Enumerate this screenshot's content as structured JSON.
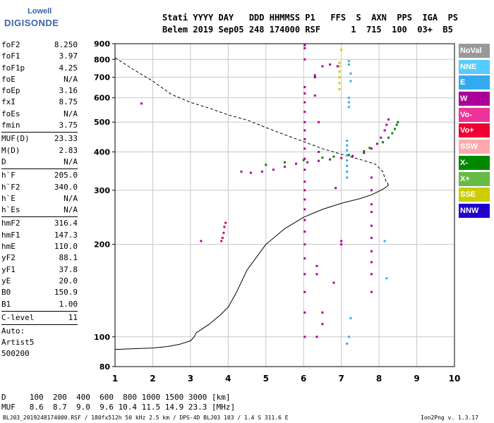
{
  "logo": {
    "top": "Lowell",
    "main": "DIGISONDE"
  },
  "header": {
    "line1": "Stati YYYY DAY   DDD HHMMSS P1   FFS  S  AXN  PPS  IGA  PS",
    "line2": "Belem 2019 Sep05 248 174000 RSF      1  715  100  03+  B5"
  },
  "params": [
    {
      "k": "foF2",
      "v": "8.250"
    },
    {
      "k": "foF1",
      "v": "3.97"
    },
    {
      "k": "foF1p",
      "v": "4.25"
    },
    {
      "k": "foE",
      "v": "N/A"
    },
    {
      "k": "foEp",
      "v": "3.16"
    },
    {
      "k": "fxI",
      "v": "8.75"
    },
    {
      "k": "foEs",
      "v": "N/A"
    },
    {
      "k": "fmin",
      "v": "3.75"
    },
    {
      "sep": true
    },
    {
      "k": "MUF(D)",
      "v": "23.33"
    },
    {
      "k": "M(D)",
      "v": "2.83"
    },
    {
      "k": "D",
      "v": "N/A"
    },
    {
      "sep": true
    },
    {
      "k": "h`F",
      "v": "205.0"
    },
    {
      "k": "h`F2",
      "v": "340.0"
    },
    {
      "k": "h`E",
      "v": "N/A"
    },
    {
      "k": "h`Es",
      "v": "N/A"
    },
    {
      "sep": true
    },
    {
      "k": "hmF2",
      "v": "316.4"
    },
    {
      "k": "hmF1",
      "v": "147.3"
    },
    {
      "k": "hmE",
      "v": "110.0"
    },
    {
      "k": "yF2",
      "v": "88.1"
    },
    {
      "k": "yF1",
      "v": "37.8"
    },
    {
      "k": "yE",
      "v": "20.0"
    },
    {
      "k": "B0",
      "v": "150.9"
    },
    {
      "k": "B1",
      "v": "1.00"
    },
    {
      "sep": true
    },
    {
      "k": "C-level",
      "v": "11"
    },
    {
      "sep": true
    },
    {
      "plain": "Auto:"
    },
    {
      "plain": "Artist5"
    },
    {
      "plain": "500200"
    }
  ],
  "legend": [
    {
      "label": "NoVal",
      "color": "#999999"
    },
    {
      "label": "NNE",
      "color": "#55ccff"
    },
    {
      "label": "E",
      "color": "#33aaee"
    },
    {
      "label": "W",
      "color": "#aa0099"
    },
    {
      "label": "Vo-",
      "color": "#ee3399"
    },
    {
      "label": "Vo+",
      "color": "#ee0033"
    },
    {
      "label": "SSW",
      "color": "#ffaaaa"
    },
    {
      "label": "X-",
      "color": "#008800"
    },
    {
      "label": "X+",
      "color": "#66bb44"
    },
    {
      "label": "SSE",
      "color": "#cccc00"
    },
    {
      "label": "NNW",
      "color": "#2200cc"
    }
  ],
  "footer": {
    "d_row": "D     100  200  400  600  800 1000 1500 3000 [km]",
    "muf_row": "MUF   8.6  8.7  9.0  9.6 10.4 11.5 14.9 23.3 [MHz]",
    "file": "BLJ03_2019248174000.RSF / 180fx512h 50 kHz 2.5 km / DPS-4D BLJ03 103 / 1.4 S 311.6 E",
    "version": "Ion2Png v. 1.3.17"
  },
  "chart_data": {
    "type": "scatter",
    "xlabel": "",
    "ylabel": "",
    "xlim": [
      1,
      10
    ],
    "ylim": [
      80,
      900
    ],
    "x_ticks": [
      1,
      2,
      3,
      4,
      5,
      6,
      7,
      8,
      9,
      10
    ],
    "y_ticks": [
      80,
      100,
      200,
      300,
      400,
      500,
      600,
      700,
      800,
      900
    ],
    "grid": true,
    "y_scale": "log",
    "series": [
      {
        "type": "scatter",
        "color": "#cc0077",
        "points": [
          [
            3.82,
            205
          ],
          [
            3.85,
            210
          ],
          [
            3.88,
            218
          ],
          [
            3.9,
            228
          ],
          [
            3.93,
            235
          ]
        ]
      },
      {
        "type": "scatter",
        "color": "#aa0099",
        "points": [
          [
            4.35,
            345
          ],
          [
            4.6,
            342
          ],
          [
            4.9,
            345
          ],
          [
            5.2,
            350
          ],
          [
            5.5,
            358
          ],
          [
            5.8,
            366
          ],
          [
            6.1,
            370
          ],
          [
            6.4,
            374
          ],
          [
            6.7,
            378
          ],
          [
            7.0,
            382
          ],
          [
            7.3,
            388
          ],
          [
            7.6,
            397
          ],
          [
            7.8,
            410
          ],
          [
            7.95,
            425
          ],
          [
            8.05,
            445
          ],
          [
            8.15,
            470
          ],
          [
            8.2,
            490
          ],
          [
            8.25,
            510
          ]
        ]
      },
      {
        "type": "scatter",
        "color": "#008800",
        "points": [
          [
            5.0,
            363
          ],
          [
            5.5,
            370
          ],
          [
            6.0,
            376
          ],
          [
            6.5,
            383
          ],
          [
            6.8,
            386
          ],
          [
            7.2,
            391
          ],
          [
            7.6,
            402
          ],
          [
            7.75,
            412
          ],
          [
            8.1,
            430
          ],
          [
            8.25,
            445
          ],
          [
            8.35,
            460
          ],
          [
            8.42,
            475
          ],
          [
            8.47,
            490
          ],
          [
            8.5,
            500
          ]
        ]
      },
      {
        "type": "scatter",
        "color": "#33aaee",
        "points": [
          [
            7.15,
            330
          ],
          [
            7.15,
            345
          ],
          [
            7.15,
            360
          ],
          [
            7.15,
            375
          ],
          [
            7.15,
            390
          ],
          [
            7.15,
            405
          ],
          [
            7.15,
            420
          ],
          [
            7.15,
            435
          ],
          [
            7.2,
            560
          ],
          [
            7.2,
            580
          ],
          [
            7.2,
            600
          ],
          [
            7.2,
            770
          ],
          [
            7.2,
            790
          ],
          [
            7.25,
            680
          ],
          [
            7.25,
            720
          ],
          [
            8.15,
            205
          ],
          [
            8.2,
            155
          ],
          [
            7.15,
            95
          ],
          [
            7.2,
            100
          ],
          [
            7.25,
            115
          ]
        ]
      },
      {
        "type": "scatter",
        "color": "#cccc00",
        "points": [
          [
            6.95,
            640
          ],
          [
            6.95,
            670
          ],
          [
            6.95,
            700
          ],
          [
            6.95,
            730
          ],
          [
            6.95,
            760
          ],
          [
            6.95,
            780
          ],
          [
            7.0,
            860
          ]
        ]
      },
      {
        "type": "scatter",
        "color": "#aa0099",
        "points": [
          [
            6.03,
            100
          ],
          [
            6.03,
            120
          ],
          [
            6.03,
            140
          ],
          [
            6.03,
            160
          ],
          [
            6.03,
            180
          ],
          [
            6.03,
            200
          ],
          [
            6.03,
            220
          ],
          [
            6.03,
            240
          ],
          [
            6.03,
            260
          ],
          [
            6.03,
            280
          ],
          [
            6.03,
            300
          ],
          [
            6.03,
            320
          ],
          [
            6.03,
            350
          ],
          [
            6.03,
            380
          ],
          [
            6.03,
            410
          ],
          [
            6.03,
            440
          ],
          [
            6.03,
            470
          ],
          [
            6.03,
            500
          ],
          [
            6.03,
            540
          ],
          [
            6.03,
            580
          ],
          [
            6.03,
            620
          ],
          [
            6.03,
            650
          ],
          [
            6.03,
            800
          ],
          [
            6.03,
            870
          ],
          [
            6.03,
            890
          ],
          [
            6.3,
            610
          ],
          [
            6.3,
            700
          ],
          [
            6.3,
            710
          ],
          [
            6.35,
            160
          ],
          [
            6.35,
            170
          ],
          [
            6.35,
            100
          ],
          [
            6.5,
            120
          ],
          [
            6.5,
            110
          ],
          [
            6.8,
            150
          ],
          [
            6.85,
            305
          ],
          [
            6.5,
            760
          ],
          [
            6.7,
            770
          ],
          [
            6.9,
            760
          ],
          [
            6.4,
            400
          ],
          [
            6.4,
            500
          ],
          [
            7.0,
            205
          ],
          [
            7.0,
            200
          ],
          [
            7.8,
            330
          ],
          [
            7.8,
            300
          ],
          [
            7.8,
            270
          ],
          [
            7.8,
            255
          ],
          [
            7.8,
            230
          ],
          [
            7.8,
            210
          ],
          [
            7.8,
            190
          ],
          [
            7.8,
            175
          ],
          [
            7.8,
            160
          ],
          [
            7.8,
            140
          ],
          [
            1.7,
            575
          ],
          [
            3.28,
            205
          ]
        ]
      }
    ],
    "lines": [
      {
        "style": "solid",
        "color": "#000000",
        "points": [
          [
            1.0,
            91
          ],
          [
            1.5,
            91.5
          ],
          [
            2.0,
            92
          ],
          [
            2.4,
            93
          ],
          [
            2.7,
            94.5
          ],
          [
            3.0,
            97
          ],
          [
            3.1,
            100
          ],
          [
            3.15,
            103
          ],
          [
            3.2,
            104
          ],
          [
            3.5,
            110
          ],
          [
            3.8,
            118
          ],
          [
            4.0,
            125
          ],
          [
            4.2,
            138
          ],
          [
            4.5,
            165
          ],
          [
            5.0,
            200
          ],
          [
            5.5,
            225
          ],
          [
            6.0,
            245
          ],
          [
            6.5,
            260
          ],
          [
            7.0,
            272
          ],
          [
            7.5,
            282
          ],
          [
            7.8,
            290
          ],
          [
            8.0,
            298
          ],
          [
            8.15,
            305
          ],
          [
            8.25,
            312
          ],
          [
            8.22,
            318
          ]
        ]
      },
      {
        "style": "dashed",
        "color": "#000000",
        "points": [
          [
            1.0,
            810
          ],
          [
            1.5,
            740
          ],
          [
            2.0,
            680
          ],
          [
            2.5,
            615
          ],
          [
            3.0,
            580
          ],
          [
            3.5,
            555
          ],
          [
            4.0,
            528
          ],
          [
            4.5,
            508
          ],
          [
            5.0,
            480
          ],
          [
            5.5,
            455
          ],
          [
            6.0,
            432
          ],
          [
            6.5,
            410
          ],
          [
            7.0,
            393
          ],
          [
            7.5,
            378
          ],
          [
            7.9,
            365
          ],
          [
            8.1,
            345
          ],
          [
            8.15,
            330
          ],
          [
            8.2,
            318
          ]
        ]
      }
    ]
  }
}
